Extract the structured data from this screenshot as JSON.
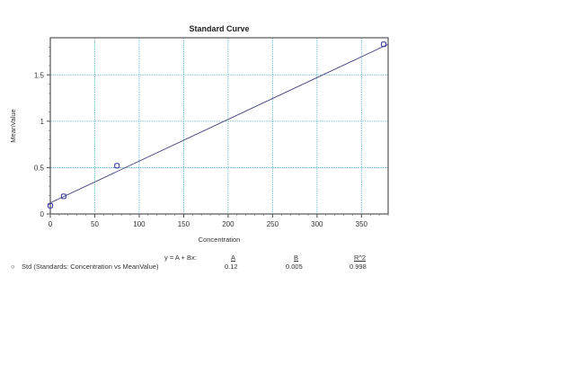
{
  "chart_data": {
    "type": "scatter",
    "title": "Standard Curve",
    "xlabel": "Concentration",
    "ylabel": "MeanValue",
    "xlim": [
      0,
      380
    ],
    "ylim": [
      0,
      1.9
    ],
    "xticks": [
      0,
      50,
      100,
      150,
      200,
      250,
      300,
      350
    ],
    "yticks": [
      0,
      0.5,
      1,
      1.5
    ],
    "grid": true,
    "series": [
      {
        "name": "Std (Standards: Concentration vs MeanValue)",
        "x": [
          0,
          15,
          75,
          375
        ],
        "y": [
          0.09,
          0.19,
          0.52,
          1.83
        ],
        "marker": "circle"
      }
    ],
    "fit": {
      "equation": "y = A + Bx:",
      "A": 0.12,
      "B": 0.005,
      "R2": 0.998
    }
  },
  "legend": {
    "equation_label": "y = A + Bx:",
    "col_a": "A",
    "col_b": "B",
    "col_r2": "R^2",
    "series_label": "Std (Standards: Concentration vs MeanValue)",
    "a_value": "0.12",
    "b_value": "0.005",
    "r2_value": "0.998"
  },
  "colors": {
    "grid": "#5fb8c8",
    "line": "#3a3a7a",
    "marker": "#3030a0",
    "frame": "#555555"
  }
}
